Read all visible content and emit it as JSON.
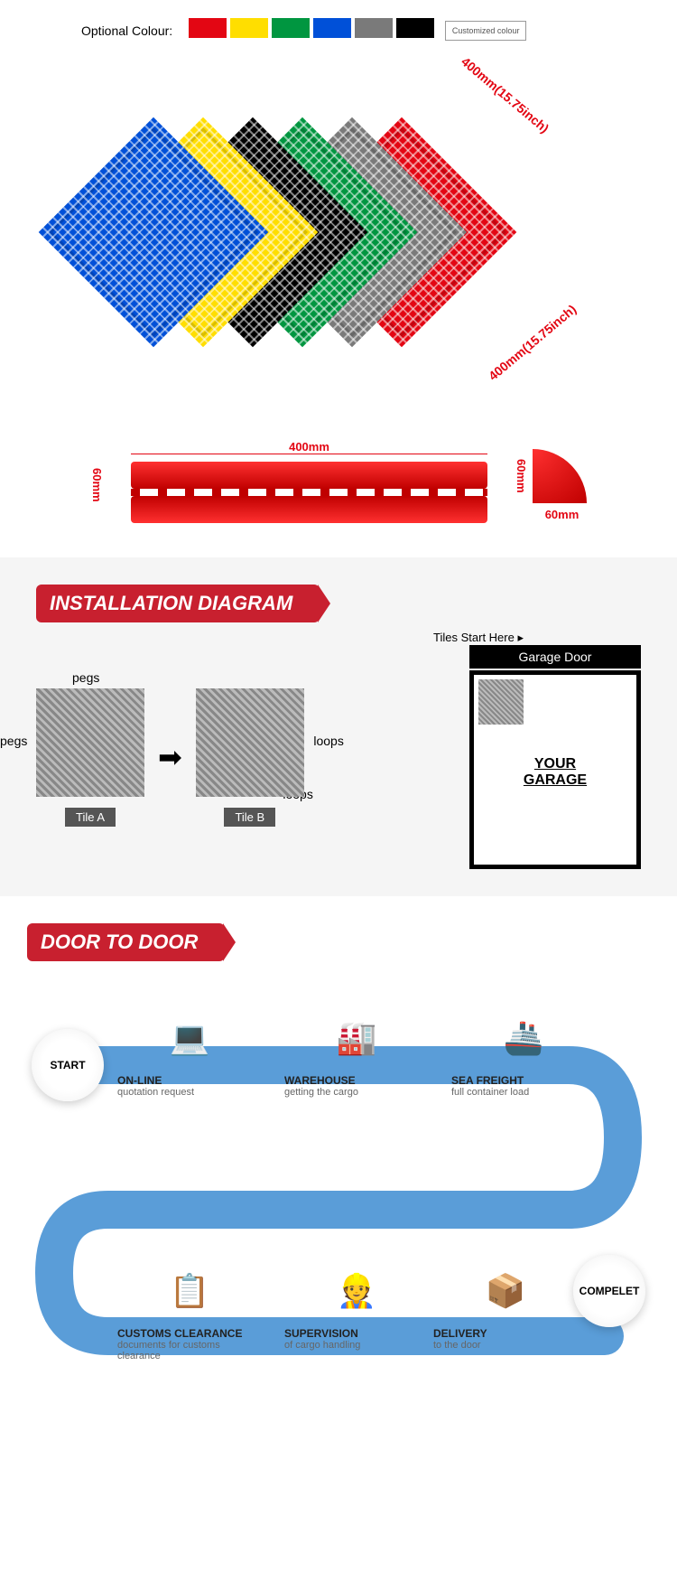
{
  "colorSection": {
    "label": "Optional Colour:",
    "swatches": [
      "#e30613",
      "#ffde00",
      "#009640",
      "#0050d8",
      "#7a7a7a",
      "#000000"
    ],
    "customLabel": "Customized colour"
  },
  "tileDisplay": {
    "colors": [
      "#0050d8",
      "#ffde00",
      "#000000",
      "#009640",
      "#7a7a7a",
      "#e30613"
    ],
    "dimSide1": "400mm(15.75inch)",
    "dimSide2": "400mm(15.75inch)"
  },
  "edgeDims": {
    "width": "400mm",
    "height": "60mm",
    "cornerW": "60mm",
    "cornerH": "60mm"
  },
  "install": {
    "header": "INSTALLATION DIAGRAM",
    "pegs": "pegs",
    "loops": "loops",
    "tileA": "Tile A",
    "tileB": "Tile B",
    "garageDoor": "Garage Door",
    "startHere": "Tiles Start Here ▸",
    "yourGarage": "YOUR\nGARAGE"
  },
  "dtd": {
    "header": "DOOR TO DOOR",
    "start": "START",
    "complete": "COMPELET",
    "steps": [
      {
        "title": "ON-LINE",
        "desc": "quotation request",
        "icon": "💻"
      },
      {
        "title": "WAREHOUSE",
        "desc": "getting the cargo",
        "icon": "🏭"
      },
      {
        "title": "SEA FREIGHT",
        "desc": "full container load",
        "icon": "🚢"
      },
      {
        "title": "CUSTOMS CLEARANCE",
        "desc": "documents for customs clearance",
        "icon": "📋"
      },
      {
        "title": "SUPERVISION",
        "desc": "of cargo handling",
        "icon": "👷"
      },
      {
        "title": "DELIVERY",
        "desc": "to the door",
        "icon": "📦"
      }
    ]
  },
  "colors": {
    "accent": "#c8202f",
    "pathBlue": "#5a9dd8"
  }
}
